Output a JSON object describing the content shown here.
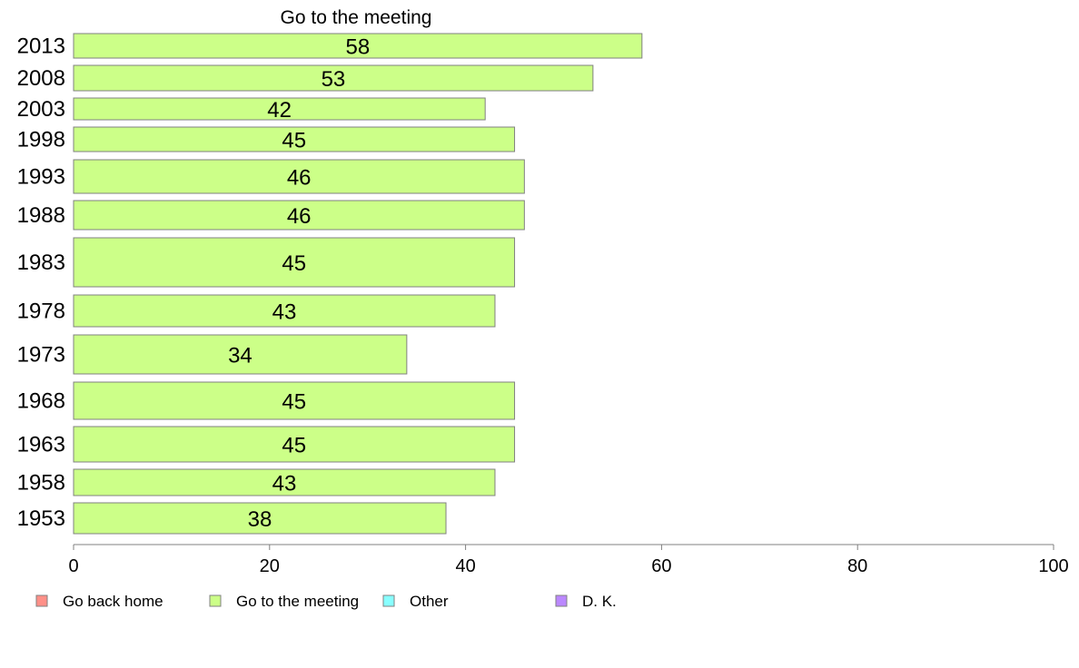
{
  "chart_data": {
    "type": "bar",
    "orientation": "horizontal",
    "title": "Go to the meeting",
    "categories": [
      "2013",
      "2008",
      "2003",
      "1998",
      "1993",
      "1988",
      "1983",
      "1978",
      "1973",
      "1968",
      "1963",
      "1958",
      "1953"
    ],
    "values": [
      58,
      53,
      42,
      45,
      46,
      46,
      45,
      43,
      34,
      45,
      45,
      43,
      38
    ],
    "value_labels": [
      "58",
      "53",
      "42",
      "45",
      "46",
      "46",
      "45",
      "43",
      "34",
      "45",
      "45",
      "43",
      "38"
    ],
    "xlim": [
      0,
      100
    ],
    "xticks": [
      "0",
      "20",
      "40",
      "60",
      "80",
      "100"
    ],
    "grid": false,
    "bar_color": "#ccff88",
    "bar_stroke": "#808080",
    "legend": {
      "position": "bottom",
      "entries": [
        {
          "label": "Go back home",
          "color": "#ff9088"
        },
        {
          "label": "Go to the meeting",
          "color": "#ccff88"
        },
        {
          "label": "Other",
          "color": "#88ffff"
        },
        {
          "label": "D. K.",
          "color": "#bb88ff"
        }
      ]
    }
  }
}
